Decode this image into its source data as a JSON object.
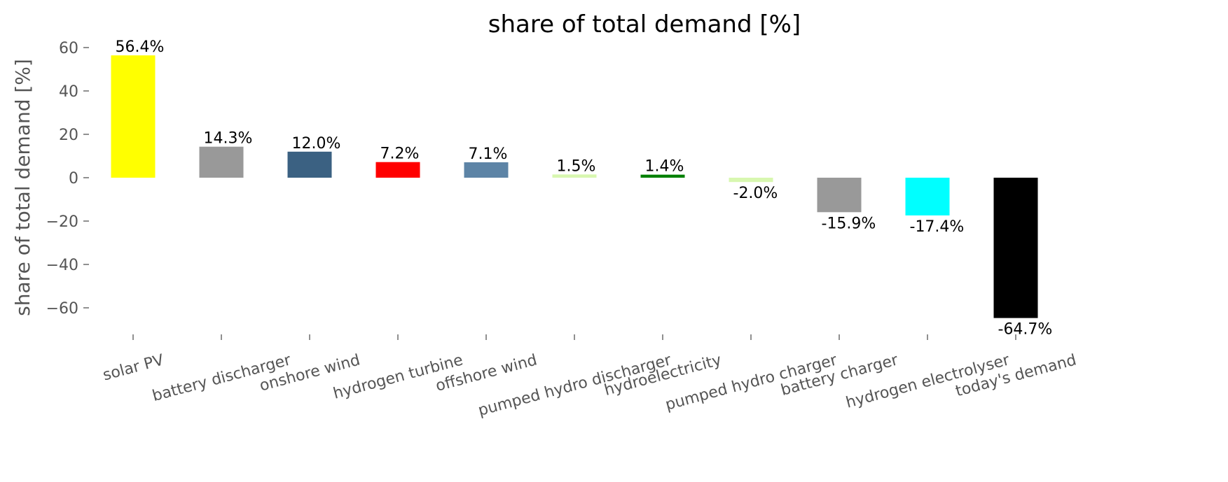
{
  "chart_data": {
    "type": "bar",
    "title": "share of total demand [%]",
    "y_label": "share of total demand [%]",
    "categories": [
      "solar PV",
      "battery discharger",
      "onshore wind",
      "hydrogen turbine",
      "offshore wind",
      "pumped hydro discharger",
      "hydroelectricity",
      "pumped hydro charger",
      "battery charger",
      "hydrogen electrolyser",
      "today's demand"
    ],
    "values": [
      56.4,
      14.3,
      12.0,
      7.2,
      7.1,
      1.5,
      1.4,
      -2.0,
      -15.9,
      -17.4,
      -64.7
    ],
    "value_labels": [
      "56.4%",
      "14.3%",
      "12.0%",
      "7.2%",
      "7.1%",
      "1.5%",
      "1.4%",
      "-2.0%",
      "-15.9%",
      "-17.4%",
      "-64.7%"
    ],
    "colors": [
      "#ffff00",
      "#999999",
      "#3b6182",
      "#ff0000",
      "#5d84a6",
      "#d8f7b0",
      "#008000",
      "#d8f7b0",
      "#999999",
      "#00ffff",
      "#000000"
    ],
    "ylim": [
      -70.8,
      62.5
    ],
    "yticks": [
      {
        "value": -60,
        "label": "−60"
      },
      {
        "value": -40,
        "label": "−40"
      },
      {
        "value": -20,
        "label": "−20"
      },
      0,
      20,
      40,
      60
    ],
    "grid": false
  }
}
